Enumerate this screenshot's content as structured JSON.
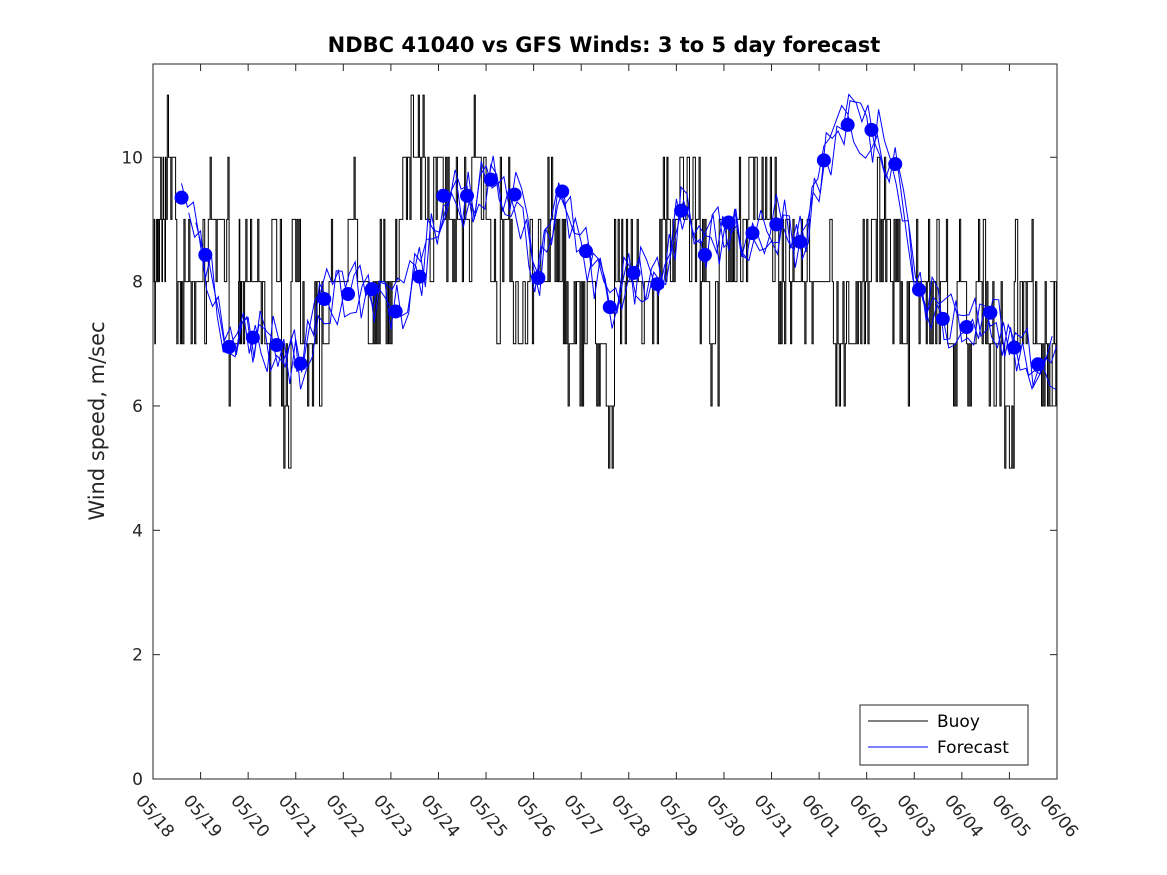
{
  "chart_data": {
    "type": "line",
    "title": "NDBC 41040 vs GFS Winds: 3 to 5 day forecast",
    "xlabel": "",
    "ylabel": "Wind speed, m/sec",
    "x_tick_labels": [
      "05/18",
      "05/19",
      "05/20",
      "05/21",
      "05/22",
      "05/23",
      "05/24",
      "05/25",
      "05/26",
      "05/27",
      "05/28",
      "05/29",
      "05/30",
      "05/31",
      "06/01",
      "06/02",
      "06/03",
      "06/04",
      "06/05",
      "06/06"
    ],
    "x_start_label": "05/18",
    "xlim_days": [
      0,
      19
    ],
    "ylim": [
      0,
      11.5
    ],
    "y_ticks": [
      0,
      2,
      4,
      6,
      8,
      10
    ],
    "grid": false,
    "legend_position": "bottom-right",
    "colors": {
      "buoy": "#000000",
      "forecast": "#0000ff"
    },
    "series": [
      {
        "name": "Buoy",
        "style": "stepped line",
        "x_days": [
          0.0,
          0.1,
          0.2,
          0.3,
          0.5,
          0.7,
          0.9,
          1.2,
          1.4,
          1.6,
          1.8,
          1.9,
          2.1,
          2.3,
          2.5,
          2.7,
          2.9,
          3.1,
          3.3,
          3.5,
          3.7,
          3.9,
          4.1,
          4.3,
          4.5,
          4.7,
          4.9,
          5.1,
          5.3,
          5.5,
          5.7,
          5.9,
          6.1,
          6.3,
          6.5,
          6.7,
          6.9,
          7.1,
          7.3,
          7.5,
          7.7,
          7.9,
          8.1,
          8.3,
          8.5,
          8.7,
          8.9,
          9.1,
          9.3,
          9.5,
          9.7,
          9.9,
          10.1,
          10.3,
          10.5,
          10.7,
          10.9,
          11.1,
          11.3,
          11.5,
          11.7,
          11.9,
          12.1,
          12.3,
          12.5,
          12.7,
          12.9,
          13.1,
          13.3,
          13.5,
          13.7,
          13.9,
          14.1,
          14.3,
          14.5,
          14.7,
          14.9,
          15.1,
          15.3,
          15.5,
          15.7,
          15.9,
          16.1,
          16.3,
          16.5,
          16.7,
          16.9,
          17.1,
          17.3,
          17.5,
          17.7,
          17.9,
          18.1,
          18.3,
          18.5,
          18.7,
          18.9
        ],
        "values": [
          8,
          9,
          9,
          10,
          8,
          8,
          8,
          9,
          9,
          7,
          8,
          8,
          8,
          7,
          8,
          6,
          8,
          7,
          7,
          7,
          8,
          8,
          9,
          8,
          7,
          8,
          8,
          9,
          10,
          10,
          9,
          10,
          9,
          9,
          9,
          10,
          9,
          8,
          9,
          8,
          7,
          8,
          8,
          9,
          8,
          7,
          7,
          8,
          7,
          6,
          8,
          8,
          8,
          8,
          8,
          9,
          9,
          9,
          9,
          8,
          7,
          9,
          9,
          9,
          10,
          9,
          9,
          8,
          8,
          8,
          8,
          8,
          8,
          7,
          7,
          7,
          8,
          9,
          9,
          8,
          7,
          8,
          8,
          8,
          8,
          7,
          8,
          7,
          8,
          7,
          7,
          6,
          8,
          8,
          7,
          7,
          7
        ]
      },
      {
        "name": "Forecast",
        "style": "lines with circle markers",
        "x_days": [
          0.6,
          1.1,
          1.6,
          2.1,
          2.6,
          3.1,
          3.6,
          4.1,
          4.6,
          5.1,
          5.6,
          6.1,
          6.6,
          7.1,
          7.6,
          8.1,
          8.6,
          9.1,
          9.6,
          10.1,
          10.6,
          11.1,
          11.6,
          12.1,
          12.6,
          13.1,
          13.6,
          14.1,
          14.6,
          15.1,
          15.6,
          16.1,
          16.6,
          17.1,
          17.6,
          18.1,
          18.6
        ],
        "values": [
          9.35,
          8.43,
          6.95,
          7.1,
          6.98,
          6.68,
          7.72,
          7.8,
          7.88,
          7.52,
          8.08,
          9.38,
          9.38,
          9.64,
          9.4,
          8.06,
          9.45,
          8.49,
          7.59,
          8.14,
          7.96,
          9.14,
          8.43,
          8.95,
          8.78,
          8.92,
          8.64,
          9.95,
          10.52,
          10.44,
          9.89,
          7.87,
          7.4,
          7.27,
          7.5,
          6.94,
          6.67
        ]
      }
    ]
  }
}
